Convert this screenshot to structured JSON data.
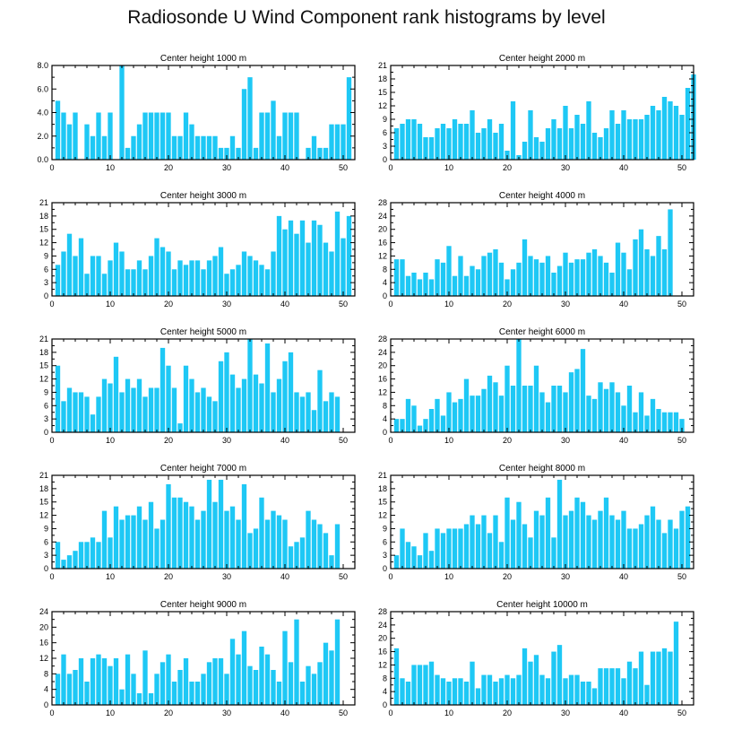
{
  "title": "Radiosonde U Wind Component rank histograms by level",
  "colors": {
    "bar": "#1ec8f5",
    "axis": "#000000",
    "background": "#ffffff"
  },
  "chart_data": [
    {
      "type": "bar",
      "title": "Center height 1000 m",
      "xlim": [
        0,
        52
      ],
      "xticks": [
        0,
        10,
        20,
        30,
        40,
        50
      ],
      "ylim": [
        0,
        8
      ],
      "yticks": [
        "0.0",
        "2.0",
        "4.0",
        "6.0",
        "8.0"
      ],
      "ytick_values": [
        0,
        2,
        4,
        6,
        8
      ],
      "values": [
        5,
        4,
        3,
        4,
        0,
        3,
        2,
        4,
        2,
        4,
        0,
        8,
        1,
        2,
        3,
        4,
        4,
        4,
        4,
        4,
        2,
        2,
        4,
        3,
        2,
        2,
        2,
        2,
        1,
        1,
        2,
        1,
        6,
        7,
        1,
        4,
        4,
        5,
        2,
        4,
        4,
        4,
        0,
        1,
        2,
        1,
        1,
        3,
        3,
        3,
        7
      ]
    },
    {
      "type": "bar",
      "title": "Center height 2000 m",
      "xlim": [
        0,
        52
      ],
      "xticks": [
        0,
        10,
        20,
        30,
        40,
        50
      ],
      "ylim": [
        0,
        21
      ],
      "yticks": [
        "0",
        "3",
        "6",
        "9",
        "12",
        "15",
        "18",
        "21"
      ],
      "ytick_values": [
        0,
        3,
        6,
        9,
        12,
        15,
        18,
        21
      ],
      "values": [
        7,
        8,
        9,
        9,
        8,
        5,
        5,
        7,
        8,
        7,
        9,
        8,
        8,
        11,
        6,
        7,
        9,
        6,
        8,
        2,
        13,
        1,
        4,
        11,
        5,
        4,
        7,
        9,
        7,
        12,
        7,
        10,
        8,
        13,
        6,
        5,
        7,
        11,
        8,
        11,
        9,
        9,
        9,
        10,
        12,
        11,
        14,
        13,
        12,
        10,
        16,
        19
      ]
    },
    {
      "type": "bar",
      "title": "Center height 3000 m",
      "xlim": [
        0,
        52
      ],
      "xticks": [
        0,
        10,
        20,
        30,
        40,
        50
      ],
      "ylim": [
        0,
        21
      ],
      "yticks": [
        "0",
        "3",
        "6",
        "9",
        "12",
        "15",
        "18",
        "21"
      ],
      "ytick_values": [
        0,
        3,
        6,
        9,
        12,
        15,
        18,
        21
      ],
      "values": [
        7,
        10,
        14,
        9,
        13,
        5,
        9,
        9,
        5,
        8,
        12,
        10,
        6,
        6,
        8,
        6,
        9,
        13,
        11,
        10,
        6,
        8,
        7,
        8,
        8,
        6,
        8,
        9,
        11,
        5,
        6,
        7,
        10,
        9,
        8,
        7,
        6,
        10,
        18,
        15,
        17,
        14,
        17,
        12,
        17,
        16,
        12,
        10,
        19,
        13,
        18
      ]
    },
    {
      "type": "bar",
      "title": "Center height 4000 m",
      "xlim": [
        0,
        52
      ],
      "xticks": [
        0,
        10,
        20,
        30,
        40,
        50
      ],
      "ylim": [
        0,
        28
      ],
      "yticks": [
        "0",
        "4",
        "8",
        "12",
        "16",
        "20",
        "24",
        "28"
      ],
      "ytick_values": [
        0,
        4,
        8,
        12,
        16,
        20,
        24,
        28
      ],
      "values": [
        11,
        11,
        6,
        7,
        5,
        7,
        5,
        11,
        10,
        15,
        6,
        12,
        6,
        9,
        8,
        12,
        13,
        14,
        10,
        5,
        8,
        10,
        17,
        12,
        11,
        10,
        12,
        7,
        9,
        13,
        10,
        11,
        11,
        13,
        14,
        12,
        10,
        7,
        16,
        13,
        8,
        17,
        20,
        14,
        12,
        18,
        14,
        26
      ]
    },
    {
      "type": "bar",
      "title": "Center height 5000 m",
      "xlim": [
        0,
        52
      ],
      "xticks": [
        0,
        10,
        20,
        30,
        40,
        50
      ],
      "ylim": [
        0,
        21
      ],
      "yticks": [
        "0",
        "3",
        "6",
        "9",
        "12",
        "15",
        "18",
        "21"
      ],
      "ytick_values": [
        0,
        3,
        6,
        9,
        12,
        15,
        18,
        21
      ],
      "values": [
        15,
        7,
        10,
        9,
        9,
        8,
        4,
        8,
        12,
        11,
        17,
        9,
        12,
        10,
        12,
        8,
        10,
        10,
        19,
        15,
        10,
        2,
        15,
        12,
        9,
        10,
        8,
        7,
        16,
        18,
        13,
        10,
        12,
        21,
        13,
        11,
        20,
        9,
        12,
        16,
        18,
        9,
        8,
        9,
        5,
        14,
        7,
        9,
        8
      ]
    },
    {
      "type": "bar",
      "title": "Center height 6000 m",
      "xlim": [
        0,
        52
      ],
      "xticks": [
        0,
        10,
        20,
        30,
        40,
        50
      ],
      "ylim": [
        0,
        28
      ],
      "yticks": [
        "0",
        "4",
        "8",
        "12",
        "16",
        "20",
        "24",
        "28"
      ],
      "ytick_values": [
        0,
        4,
        8,
        12,
        16,
        20,
        24,
        28
      ],
      "values": [
        4,
        4,
        10,
        8,
        2,
        4,
        7,
        10,
        5,
        12,
        9,
        10,
        16,
        11,
        11,
        13,
        17,
        15,
        11,
        20,
        14,
        28,
        14,
        14,
        20,
        12,
        9,
        14,
        14,
        12,
        18,
        19,
        25,
        11,
        10,
        15,
        13,
        15,
        12,
        8,
        14,
        6,
        12,
        5,
        10,
        7,
        6,
        6,
        6,
        4
      ]
    },
    {
      "type": "bar",
      "title": "Center height 7000 m",
      "xlim": [
        0,
        52
      ],
      "xticks": [
        0,
        10,
        20,
        30,
        40,
        50
      ],
      "ylim": [
        0,
        21
      ],
      "yticks": [
        "0",
        "3",
        "6",
        "9",
        "12",
        "15",
        "18",
        "21"
      ],
      "ytick_values": [
        0,
        3,
        6,
        9,
        12,
        15,
        18,
        21
      ],
      "values": [
        6,
        2,
        3,
        4,
        6,
        6,
        7,
        6,
        13,
        7,
        14,
        11,
        12,
        12,
        14,
        11,
        15,
        9,
        11,
        19,
        16,
        16,
        15,
        14,
        11,
        13,
        20,
        15,
        20,
        13,
        14,
        11,
        19,
        8,
        9,
        16,
        11,
        13,
        12,
        11,
        5,
        6,
        7,
        13,
        11,
        10,
        8,
        3,
        10
      ]
    },
    {
      "type": "bar",
      "title": "Center height 8000 m",
      "xlim": [
        0,
        52
      ],
      "xticks": [
        0,
        10,
        20,
        30,
        40,
        50
      ],
      "ylim": [
        0,
        21
      ],
      "yticks": [
        "0",
        "3",
        "6",
        "9",
        "12",
        "15",
        "18",
        "21"
      ],
      "ytick_values": [
        0,
        3,
        6,
        9,
        12,
        15,
        18,
        21
      ],
      "values": [
        3,
        9,
        6,
        5,
        3,
        8,
        4,
        9,
        8,
        9,
        9,
        9,
        10,
        12,
        10,
        12,
        8,
        12,
        6,
        16,
        11,
        15,
        10,
        7,
        13,
        12,
        16,
        7,
        20,
        12,
        13,
        16,
        15,
        12,
        11,
        13,
        16,
        12,
        11,
        13,
        9,
        9,
        10,
        12,
        14,
        11,
        8,
        11,
        9,
        13,
        14
      ]
    },
    {
      "type": "bar",
      "title": "Center height 9000 m",
      "xlim": [
        0,
        52
      ],
      "xticks": [
        0,
        10,
        20,
        30,
        40,
        50
      ],
      "ylim": [
        0,
        24
      ],
      "yticks": [
        "0",
        "4",
        "8",
        "12",
        "16",
        "20",
        "24"
      ],
      "ytick_values": [
        0,
        4,
        8,
        12,
        16,
        20,
        24
      ],
      "values": [
        8,
        13,
        8,
        9,
        12,
        6,
        12,
        13,
        12,
        10,
        12,
        4,
        13,
        8,
        3,
        14,
        3,
        8,
        11,
        13,
        6,
        9,
        12,
        6,
        6,
        8,
        11,
        12,
        12,
        8,
        17,
        13,
        19,
        10,
        9,
        15,
        13,
        9,
        6,
        19,
        11,
        22,
        6,
        10,
        8,
        11,
        16,
        14,
        22
      ]
    },
    {
      "type": "bar",
      "title": "Center height 10000 m",
      "xlim": [
        0,
        52
      ],
      "xticks": [
        0,
        10,
        20,
        30,
        40,
        50
      ],
      "ylim": [
        0,
        28
      ],
      "yticks": [
        "0",
        "4",
        "8",
        "12",
        "16",
        "20",
        "24",
        "28"
      ],
      "ytick_values": [
        0,
        4,
        8,
        12,
        16,
        20,
        24,
        28
      ],
      "values": [
        17,
        8,
        7,
        12,
        12,
        12,
        13,
        9,
        8,
        7,
        8,
        8,
        7,
        13,
        5,
        9,
        9,
        7,
        8,
        9,
        8,
        9,
        17,
        13,
        15,
        9,
        8,
        16,
        18,
        8,
        9,
        9,
        7,
        7,
        5,
        11,
        11,
        11,
        11,
        8,
        13,
        11,
        16,
        6,
        16,
        16,
        17,
        16,
        25
      ]
    }
  ]
}
